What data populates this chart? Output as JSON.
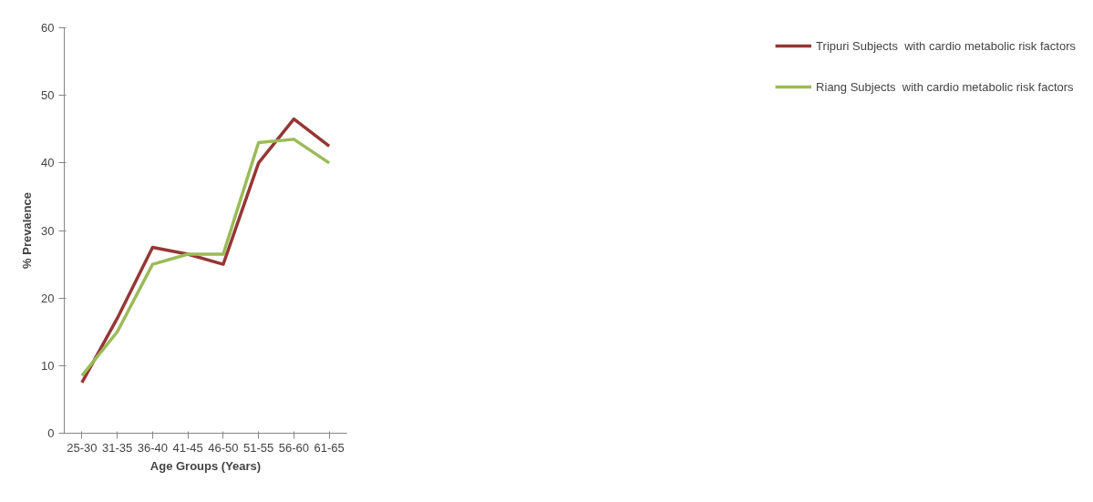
{
  "chart_data": {
    "type": "line",
    "xlabel": "Age Groups (Years)",
    "ylabel": "% Prevalence",
    "categories": [
      "25-30",
      "31-35",
      "36-40",
      "41-45",
      "46-50",
      "51-55",
      "56-60",
      "61-65"
    ],
    "series": [
      {
        "name": "Tripuri Subjects  with cardio metabolic risk factors",
        "color": "#953735",
        "values": [
          7.5,
          17,
          27.5,
          26.5,
          25,
          40,
          46.5,
          42.5
        ]
      },
      {
        "name": "Riang Subjects  with cardio metabolic risk factors",
        "color": "#9bbb59",
        "values": [
          8.5,
          15,
          25,
          26.5,
          26.5,
          43,
          43.5,
          40
        ]
      }
    ],
    "ylim": [
      0,
      60
    ],
    "yticks": [
      0,
      10,
      20,
      30,
      40,
      50,
      60
    ],
    "grid": false,
    "legend": "right",
    "marker": "none",
    "line_style": "solid"
  }
}
